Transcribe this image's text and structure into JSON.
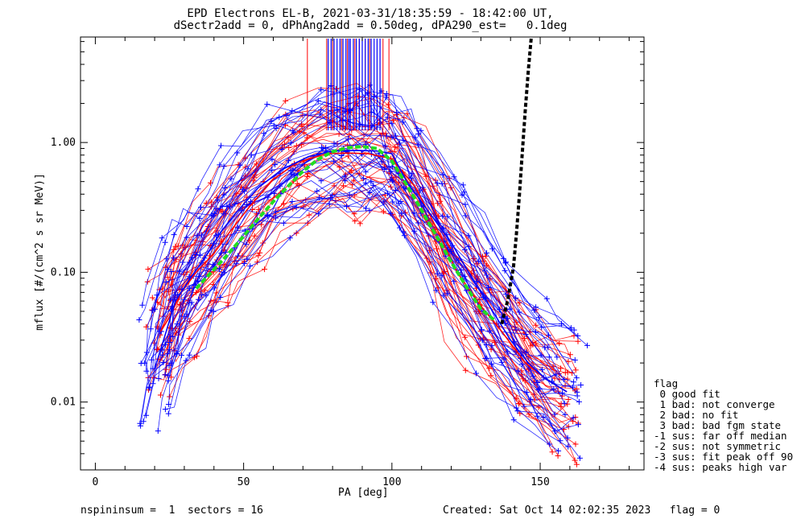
{
  "title_line1": "EPD Electrons EL-B, 2021-03-31/18:35:59 - 18:42:00 UT,",
  "title_line2": "dSectr2add = 0, dPhAng2add = 0.50deg, dPA290_est=   0.1deg",
  "footer_left": "nspininsum =  1  sectors = 16",
  "footer_right": "Created: Sat Oct 14 02:02:35 2023   flag = 0",
  "legend": {
    "title": "flag",
    "items": [
      " 0 good fit",
      " 1 bad: not converge",
      " 2 bad: no fit",
      " 3 bad: bad fgm state",
      "-1 sus: far off median",
      "-2 sus: not symmetric",
      "-3 sus: fit peak off 90",
      "-4 sus: peaks high var"
    ]
  },
  "colors": {
    "series_red": "#ff0000",
    "series_blue": "#0000ff",
    "median_fit": "#22dd22",
    "model_curve": "#000000",
    "axes": "#000000"
  },
  "chart_data": {
    "type": "line",
    "title": "EPD Electrons EL-B, 2021-03-31/18:35:59 - 18:42:00 UT,",
    "subtitle": "dSectr2add = 0, dPhAng2add = 0.50deg, dPA290_est=   0.1deg",
    "xlabel": "PA [deg]",
    "ylabel": "mflux [#/(cm^2 s sr MeV)]",
    "xlim": [
      -5,
      185
    ],
    "ylim": [
      0.003,
      6.5
    ],
    "yscale": "log",
    "xticks": [
      0,
      50,
      100,
      150
    ],
    "xtick_labels": [
      "0",
      "50",
      "100",
      "150"
    ],
    "yticks": [
      0.01,
      0.1,
      1.0
    ],
    "ytick_labels": [
      "0.01",
      "0.10",
      "1.00"
    ],
    "series": [
      {
        "color": "red",
        "x": [
          22,
          25,
          29,
          34,
          40,
          45,
          52,
          60,
          68,
          78,
          85,
          92,
          100,
          108,
          115,
          122,
          130,
          137,
          145,
          152,
          159
        ],
        "y": [
          0.035,
          0.045,
          0.07,
          0.1,
          0.14,
          0.2,
          0.32,
          0.52,
          0.7,
          0.82,
          0.83,
          0.82,
          0.75,
          0.45,
          0.22,
          0.1,
          0.055,
          0.035,
          0.02,
          0.015,
          0.012
        ]
      },
      {
        "color": "blue",
        "x": [
          20,
          23,
          27,
          32,
          37,
          42,
          47,
          55,
          63,
          72,
          80,
          88,
          95,
          100,
          105,
          112,
          120,
          127,
          134,
          140,
          146,
          152,
          159
        ],
        "y": [
          0.018,
          0.03,
          0.06,
          0.09,
          0.13,
          0.2,
          0.28,
          0.45,
          0.62,
          0.78,
          0.86,
          0.87,
          0.86,
          0.82,
          0.5,
          0.3,
          0.17,
          0.09,
          0.05,
          0.03,
          0.02,
          0.015,
          0.012
        ]
      },
      {
        "color": "green",
        "x": [
          34,
          40,
          45,
          50,
          55,
          60,
          65,
          70,
          75,
          80,
          85,
          90,
          95,
          100,
          105,
          110,
          115,
          120,
          125,
          130,
          135
        ],
        "y": [
          0.075,
          0.105,
          0.14,
          0.19,
          0.26,
          0.35,
          0.46,
          0.6,
          0.74,
          0.85,
          0.91,
          0.93,
          0.9,
          0.72,
          0.47,
          0.3,
          0.19,
          0.12,
          0.078,
          0.052,
          0.042
        ]
      },
      {
        "color": "black",
        "x": [
          137,
          139,
          141,
          142,
          143,
          144,
          145,
          146,
          147
        ],
        "y": [
          0.04,
          0.06,
          0.11,
          0.2,
          0.4,
          0.85,
          1.8,
          3.6,
          6.5
        ]
      }
    ],
    "red_vertical_markers_x": [
      71.5,
      78,
      80,
      83,
      85,
      87.5,
      89,
      91,
      92.5,
      95,
      97,
      99
    ],
    "blue_vertical_markers_x": [
      78.5,
      79.5,
      80.5,
      81.5,
      82.5,
      83.5,
      84.5,
      85.5,
      86,
      87,
      88,
      89,
      90,
      91,
      92,
      93,
      94,
      95,
      96
    ],
    "grid": false,
    "legend_position": "right"
  }
}
